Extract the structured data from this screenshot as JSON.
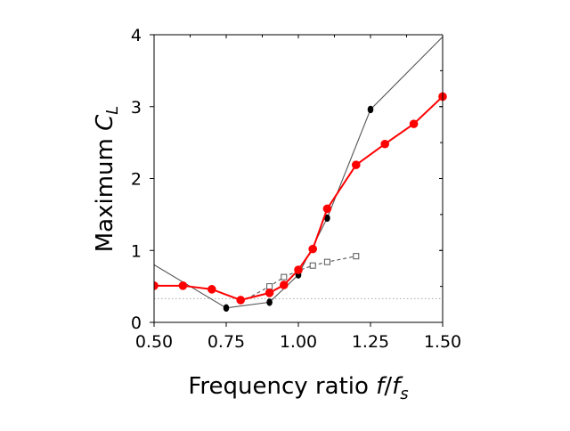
{
  "chart_data": {
    "type": "line",
    "title": "",
    "xlabel": "Frequency ratio f/f_s",
    "xlabel_parts": {
      "prefix": "Frequency ratio ",
      "f": "f",
      "slash": "/",
      "fs": "f",
      "fs_sub": "s"
    },
    "ylabel": "Maximum C_L",
    "ylabel_parts": {
      "prefix": "Maximum ",
      "c": "C",
      "c_sub": "L"
    },
    "xlim": [
      0.5,
      1.5
    ],
    "ylim": [
      0,
      4
    ],
    "xticks": [
      0.5,
      0.75,
      1.0,
      1.25,
      1.5
    ],
    "xtick_labels": [
      "0.50",
      "0.75",
      "1.00",
      "1.25",
      "1.50"
    ],
    "yticks": [
      0,
      1,
      2,
      3,
      4
    ],
    "ytick_labels": [
      "0",
      "1",
      "2",
      "3",
      "4"
    ],
    "grid": false,
    "reference_line": {
      "y": 0.33,
      "style": "dotted",
      "color": "#aaaaaa"
    },
    "series": [
      {
        "color": "#555555",
        "marker": "ellipse-filled",
        "marker_color": "#000000",
        "line_style": "solid",
        "x": [
          0.5,
          0.75,
          0.9,
          1.0,
          1.1,
          1.25,
          1.5
        ],
        "y": [
          0.8,
          0.2,
          0.28,
          0.66,
          1.45,
          2.96,
          3.97
        ],
        "marked": [
          false,
          true,
          true,
          true,
          true,
          true,
          false
        ]
      },
      {
        "color": "#555555",
        "marker": "square-open",
        "marker_color": "#555555",
        "line_style": "dashed",
        "x": [
          0.8,
          0.9,
          0.95,
          1.0,
          1.05,
          1.1,
          1.2
        ],
        "y": [
          0.28,
          0.5,
          0.63,
          0.72,
          0.79,
          0.84,
          0.92
        ],
        "marked": [
          false,
          true,
          true,
          true,
          true,
          true,
          true
        ]
      },
      {
        "color": "#ff0000",
        "marker": "circle-filled",
        "marker_color": "#ff0000",
        "line_style": "solid",
        "x": [
          0.5,
          0.6,
          0.7,
          0.8,
          0.9,
          0.95,
          1.0,
          1.05,
          1.1,
          1.2,
          1.3,
          1.4,
          1.5
        ],
        "y": [
          0.51,
          0.51,
          0.46,
          0.31,
          0.41,
          0.52,
          0.73,
          1.02,
          1.58,
          2.19,
          2.48,
          2.76,
          3.14
        ],
        "marked": [
          true,
          true,
          true,
          true,
          true,
          true,
          true,
          true,
          true,
          true,
          true,
          true,
          true
        ]
      }
    ]
  }
}
